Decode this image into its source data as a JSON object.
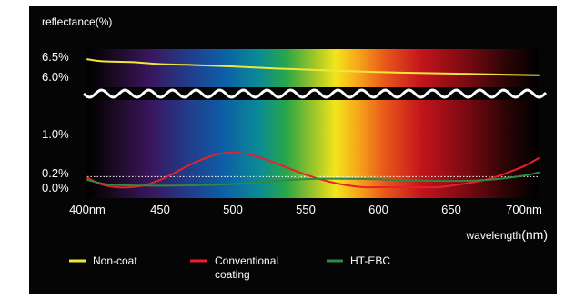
{
  "chart_data": {
    "type": "line",
    "ylabel": "reflectance(%)",
    "xlabel_prefix": "wavelength",
    "xlabel_unit": "(nm)",
    "x_ticks": [
      "400nm",
      "450",
      "500",
      "550",
      "600",
      "650",
      "700nm"
    ],
    "y_ticks": [
      "6.5%",
      "6.0%",
      "1.0%",
      "0.2%",
      "0.0%"
    ],
    "xlim": [
      400,
      710
    ],
    "ylim_lower": [
      0.0,
      1.0
    ],
    "ylim_upper": [
      6.0,
      6.5
    ],
    "broken_axis": true,
    "reference_line": 0.2,
    "series": [
      {
        "name": "Non-coat",
        "color": "#f0e63c",
        "x": [
          400,
          410,
          430,
          450,
          470,
          500,
          530,
          560,
          600,
          640,
          680,
          710
        ],
        "y": [
          6.45,
          6.4,
          6.38,
          6.33,
          6.31,
          6.27,
          6.22,
          6.18,
          6.13,
          6.1,
          6.07,
          6.05
        ]
      },
      {
        "name": "Conventional\ncoating",
        "color": "#e8202a",
        "x": [
          400,
          410,
          420,
          430,
          440,
          450,
          460,
          470,
          480,
          490,
          500,
          510,
          520,
          530,
          540,
          550,
          560,
          570,
          580,
          590,
          600,
          610,
          620,
          630,
          640,
          650,
          660,
          670,
          680,
          690,
          700,
          710
        ],
        "y": [
          0.18,
          0.05,
          0.0,
          0.0,
          0.04,
          0.14,
          0.27,
          0.42,
          0.54,
          0.63,
          0.66,
          0.63,
          0.55,
          0.45,
          0.34,
          0.24,
          0.15,
          0.08,
          0.03,
          0.0,
          0.0,
          0.0,
          0.0,
          0.0,
          0.0,
          0.03,
          0.07,
          0.12,
          0.19,
          0.29,
          0.4,
          0.55
        ]
      },
      {
        "name": "HT-EBC",
        "color": "#2e8a43",
        "x": [
          400,
          410,
          420,
          440,
          460,
          480,
          500,
          520,
          540,
          560,
          580,
          600,
          620,
          640,
          660,
          680,
          700,
          710
        ],
        "y": [
          0.14,
          0.07,
          0.04,
          0.03,
          0.03,
          0.04,
          0.06,
          0.1,
          0.14,
          0.16,
          0.16,
          0.15,
          0.13,
          0.12,
          0.12,
          0.15,
          0.22,
          0.28
        ]
      }
    ],
    "legend_position": "bottom"
  },
  "legend": [
    {
      "label": "Non-coat",
      "color": "#f0e63c"
    },
    {
      "label": "Conventional\ncoating",
      "color": "#e8202a"
    },
    {
      "label": "HT-EBC",
      "color": "#2e8a43"
    }
  ]
}
